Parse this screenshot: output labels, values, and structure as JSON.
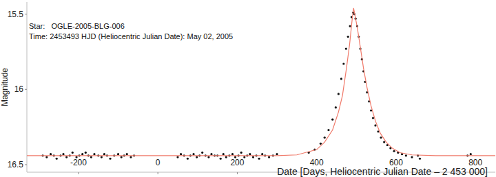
{
  "chart_data": {
    "type": "scatter",
    "annotations": [
      "Star:   OGLE-2005-BLG-006",
      "Time: 2453493 HJD (Heliocentric Julian Date): May 02, 2005"
    ],
    "x_label": "Date [Days, Heliocentric Julian Date – 2 453 000]",
    "y_label": "Magnitude",
    "xlim": [
      -330,
      850
    ],
    "ylim": [
      16.55,
      15.42
    ],
    "xticks": [
      -200,
      0,
      200,
      400,
      600,
      800
    ],
    "yticks": [
      15.5,
      16,
      16.5
    ],
    "grid": false,
    "series": [
      {
        "type": "scatter",
        "color": "#111111",
        "marker": "circle",
        "x": [
          -290,
          -280,
          -270,
          -262,
          -255,
          -245,
          -238,
          -230,
          -222,
          -215,
          -205,
          -198,
          -190,
          -182,
          -175,
          -168,
          -160,
          -150,
          -142,
          -135,
          -128,
          -120,
          -110,
          -100,
          -92,
          -85,
          -78,
          -68,
          -60,
          50,
          58,
          66,
          75,
          82,
          90,
          98,
          105,
          112,
          120,
          128,
          135,
          143,
          150,
          158,
          165,
          172,
          180,
          188,
          195,
          203,
          210,
          218,
          225,
          232,
          240,
          248,
          255,
          263,
          270,
          280,
          290,
          300,
          380,
          395,
          410,
          420,
          430,
          440,
          448,
          455,
          462,
          468,
          474,
          479,
          484,
          488,
          492,
          495,
          498,
          502,
          506,
          510,
          514,
          518,
          522,
          527,
          532,
          537,
          542,
          548,
          555,
          562,
          570,
          578,
          586,
          595,
          605,
          615,
          625,
          640,
          655,
          660,
          780,
          788
        ],
        "values": [
          16.44,
          16.45,
          16.43,
          16.44,
          16.46,
          16.44,
          16.43,
          16.45,
          16.44,
          16.42,
          16.45,
          16.44,
          16.43,
          16.42,
          16.44,
          16.45,
          16.43,
          16.44,
          16.45,
          16.43,
          16.44,
          16.46,
          16.44,
          16.43,
          16.45,
          16.44,
          16.43,
          16.45,
          16.44,
          16.45,
          16.43,
          16.44,
          16.46,
          16.44,
          16.43,
          16.45,
          16.44,
          16.42,
          16.44,
          16.45,
          16.43,
          16.44,
          16.44,
          16.46,
          16.43,
          16.45,
          16.44,
          16.43,
          16.45,
          16.44,
          16.42,
          16.45,
          16.44,
          16.43,
          16.45,
          16.44,
          16.46,
          16.43,
          16.44,
          16.45,
          16.44,
          16.43,
          16.42,
          16.4,
          16.36,
          16.32,
          16.27,
          16.2,
          16.12,
          16.03,
          15.93,
          15.83,
          15.73,
          15.65,
          15.58,
          15.52,
          15.49,
          15.5,
          15.53,
          15.58,
          15.65,
          15.73,
          15.8,
          15.88,
          15.95,
          16.02,
          16.08,
          16.14,
          16.19,
          16.24,
          16.28,
          16.32,
          16.35,
          16.37,
          16.39,
          16.41,
          16.42,
          16.43,
          16.44,
          16.45,
          16.44,
          16.46,
          16.44,
          16.43
        ]
      },
      {
        "type": "line",
        "color": "#f07a6a",
        "line_style": "solid",
        "x": [
          -330,
          -100,
          100,
          300,
          350,
          400,
          420,
          440,
          455,
          465,
          475,
          483,
          490,
          493,
          496,
          503,
          510,
          518,
          527,
          537,
          548,
          560,
          575,
          590,
          610,
          640,
          700,
          850
        ],
        "values": [
          16.44,
          16.44,
          16.44,
          16.44,
          16.435,
          16.4,
          16.35,
          16.27,
          16.15,
          16.04,
          15.86,
          15.7,
          15.52,
          15.46,
          15.5,
          15.6,
          15.72,
          15.86,
          15.99,
          16.11,
          16.21,
          16.29,
          16.35,
          16.39,
          16.42,
          16.435,
          16.44,
          16.44
        ]
      }
    ]
  }
}
